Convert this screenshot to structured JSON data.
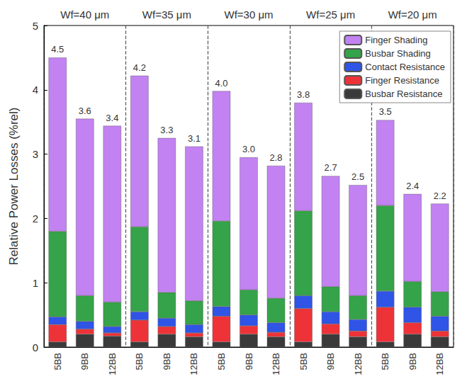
{
  "chart_data": {
    "type": "bar",
    "stacked": true,
    "ylabel": "Relative Power Losses (%rel)",
    "groups": [
      "Wf=40 μm",
      "Wf=35 μm",
      "Wf=30 μm",
      "Wf=25 μm",
      "Wf=20 μm"
    ],
    "categories": [
      "5BB",
      "9BB",
      "12BB",
      "5BB",
      "9BB",
      "12BB",
      "5BB",
      "9BB",
      "12BB",
      "5BB",
      "9BB",
      "12BB",
      "5BB",
      "9BB",
      "12BB"
    ],
    "annotations": [
      "4.5",
      "3.6",
      "3.4",
      "4.2",
      "3.3",
      "3.1",
      "4.0",
      "3.0",
      "2.8",
      "3.8",
      "2.7",
      "2.5",
      "3.5",
      "2.4",
      "2.2"
    ],
    "series": [
      {
        "name": "Busbar Resistance",
        "color": "#3a3a3a",
        "values": [
          0.08,
          0.2,
          0.17,
          0.08,
          0.2,
          0.16,
          0.08,
          0.2,
          0.16,
          0.08,
          0.2,
          0.16,
          0.08,
          0.2,
          0.16
        ]
      },
      {
        "name": "Finger Resistance",
        "color": "#ee3338",
        "values": [
          0.27,
          0.08,
          0.05,
          0.34,
          0.12,
          0.06,
          0.4,
          0.13,
          0.07,
          0.52,
          0.16,
          0.09,
          0.54,
          0.18,
          0.09
        ]
      },
      {
        "name": "Contact Resistance",
        "color": "#2f54e6",
        "values": [
          0.12,
          0.12,
          0.1,
          0.13,
          0.13,
          0.13,
          0.15,
          0.17,
          0.15,
          0.2,
          0.19,
          0.18,
          0.25,
          0.24,
          0.23
        ]
      },
      {
        "name": "Busbar Shading",
        "color": "#35a349",
        "values": [
          1.33,
          0.4,
          0.38,
          1.32,
          0.4,
          0.37,
          1.33,
          0.39,
          0.38,
          1.32,
          0.39,
          0.37,
          1.33,
          0.4,
          0.38
        ]
      },
      {
        "name": "Finger Shading",
        "color": "#c282f2",
        "values": [
          2.7,
          2.75,
          2.74,
          2.35,
          2.4,
          2.4,
          2.02,
          2.06,
          2.06,
          1.68,
          1.72,
          1.72,
          1.33,
          1.36,
          1.37
        ]
      }
    ],
    "ylim": [
      0,
      5
    ],
    "yticks": [
      0,
      1,
      2,
      3,
      4,
      5
    ],
    "legend": "top-right",
    "grid": false
  }
}
